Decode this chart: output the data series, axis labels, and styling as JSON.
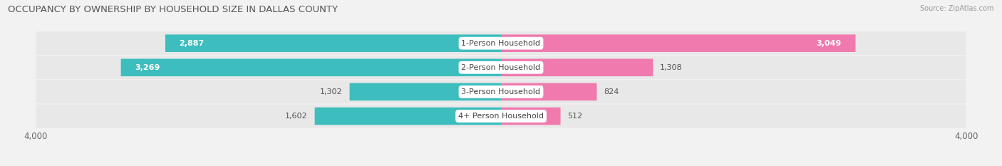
{
  "title": "OCCUPANCY BY OWNERSHIP BY HOUSEHOLD SIZE IN DALLAS COUNTY",
  "source": "Source: ZipAtlas.com",
  "categories": [
    "1-Person Household",
    "2-Person Household",
    "3-Person Household",
    "4+ Person Household"
  ],
  "owner_values": [
    2887,
    3269,
    1302,
    1602
  ],
  "renter_values": [
    3049,
    1308,
    824,
    512
  ],
  "owner_color": "#3DBDBD",
  "renter_color": "#F07AAE",
  "axis_max": 4000,
  "background_color": "#f2f2f2",
  "row_bg_color": "#e8e8e8",
  "title_fontsize": 9.5,
  "label_fontsize": 8,
  "tick_fontsize": 8.5,
  "legend_fontsize": 8,
  "category_fontsize": 8,
  "bar_height": 0.72,
  "row_sep": 1.0,
  "small_bar_threshold": 1800,
  "source_fontsize": 7
}
